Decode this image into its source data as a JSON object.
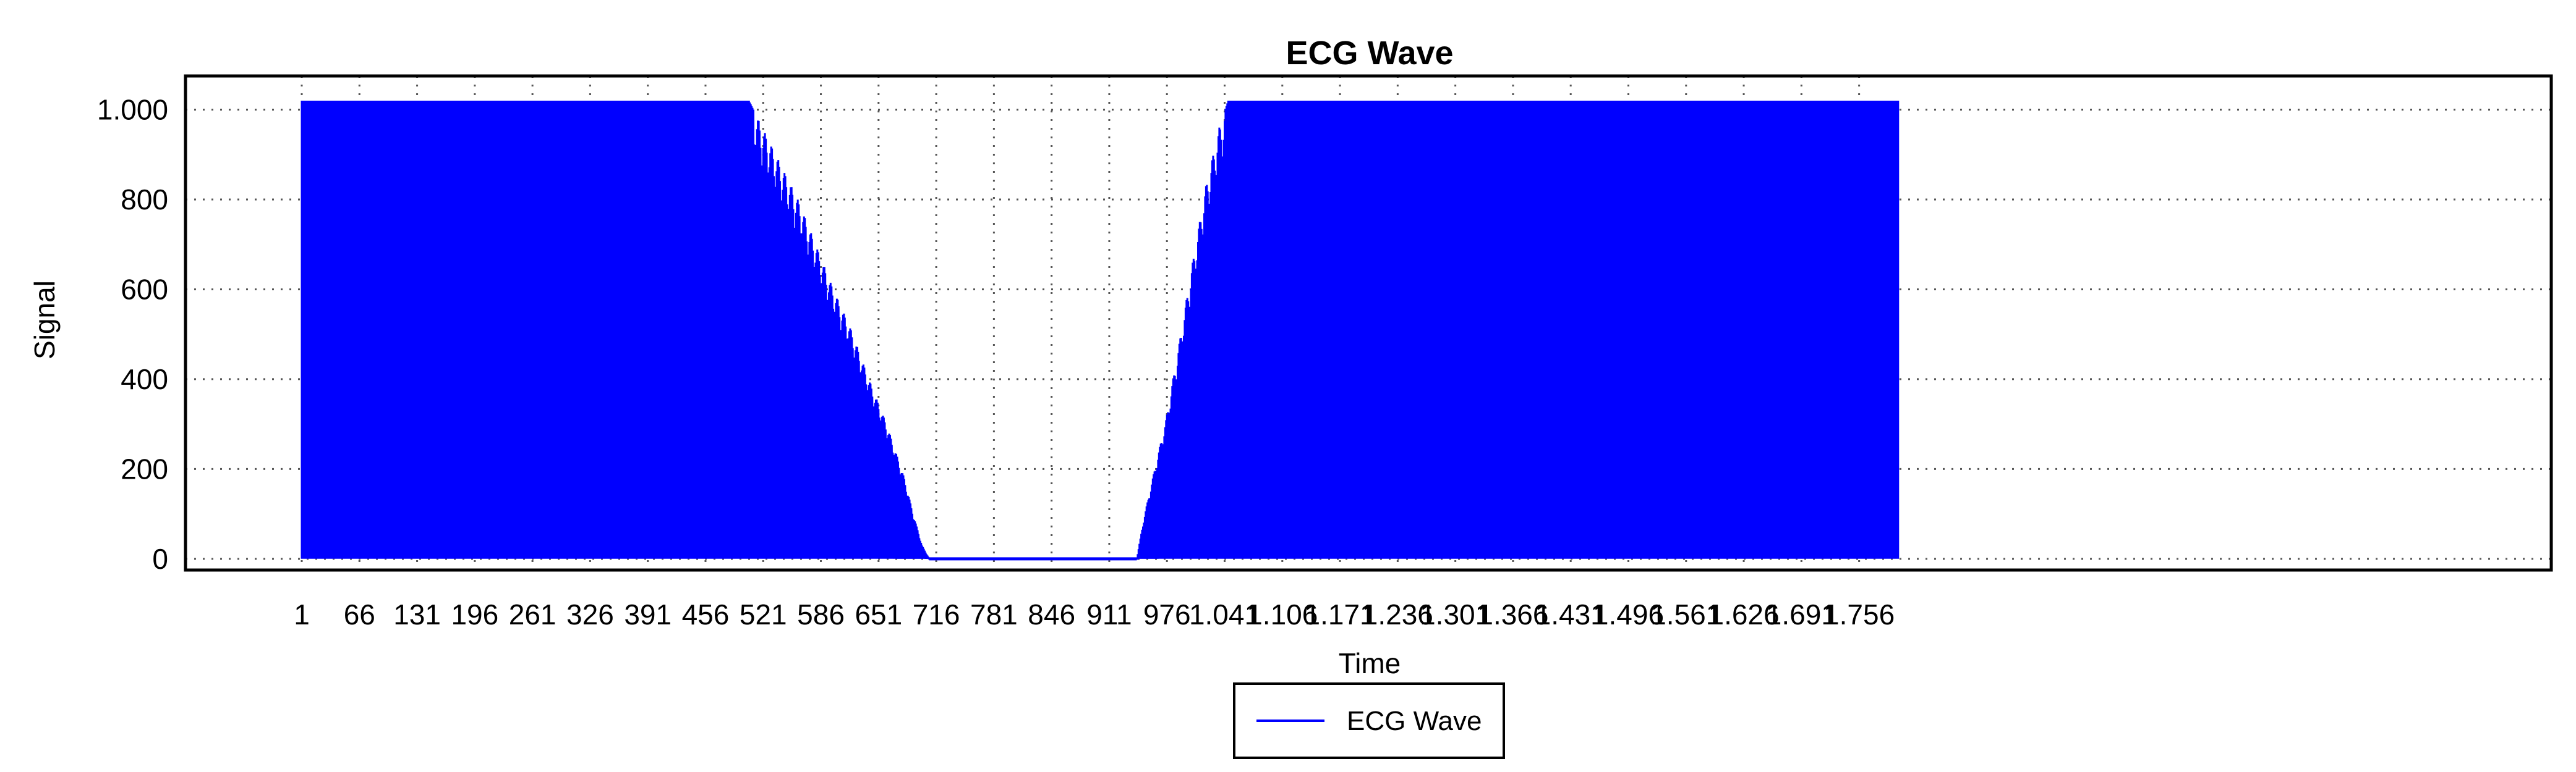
{
  "chart_data": {
    "type": "line",
    "title": "ECG Wave",
    "xlabel": "Time",
    "ylabel": "Signal",
    "ylim": [
      -25,
      1075
    ],
    "xlim": [
      -130,
      2536
    ],
    "y_ticks": [
      0,
      200,
      400,
      600,
      800,
      1000
    ],
    "y_tick_labels": [
      "0",
      "200",
      "400",
      "600",
      "800",
      "1.000"
    ],
    "x_tick_values": [
      1,
      66,
      131,
      196,
      261,
      326,
      391,
      456,
      521,
      586,
      651,
      716,
      781,
      846,
      911,
      976,
      1041,
      1106,
      1171,
      1236,
      1301,
      1366,
      1431,
      1496,
      1561,
      1626,
      1691,
      1756
    ],
    "x_tick_labels": [
      "1",
      "66",
      "131",
      "196",
      "261",
      "326",
      "391",
      "456",
      "521",
      "586",
      "651",
      "716",
      "781",
      "846",
      "911",
      "976",
      "1.041",
      "1.106",
      "1.171",
      "1.236",
      "1.301",
      "1.366",
      "1.431",
      "1.496",
      "1.561",
      "1.626",
      "1.691",
      "1.756"
    ],
    "grid": true,
    "legend": {
      "position": "bottom-center",
      "boxed": true
    },
    "series": [
      {
        "name": "ECG Wave",
        "color": "#0000ff",
        "x_range": [
          1,
          1800
        ],
        "baseline": 0,
        "envelope": [
          [
            1,
            1020
          ],
          [
            505,
            1020
          ],
          [
            520,
            960
          ],
          [
            540,
            880
          ],
          [
            560,
            800
          ],
          [
            580,
            700
          ],
          [
            600,
            600
          ],
          [
            620,
            510
          ],
          [
            640,
            400
          ],
          [
            660,
            300
          ],
          [
            680,
            180
          ],
          [
            690,
            100
          ],
          [
            700,
            30
          ],
          [
            708,
            0
          ],
          [
            942,
            0
          ],
          [
            950,
            90
          ],
          [
            960,
            180
          ],
          [
            975,
            310
          ],
          [
            990,
            480
          ],
          [
            1005,
            660
          ],
          [
            1020,
            830
          ],
          [
            1035,
            960
          ],
          [
            1045,
            1020
          ],
          [
            1800,
            1020
          ]
        ],
        "flat_segment": {
          "x": [
            708,
            942
          ],
          "y": 0
        }
      }
    ]
  }
}
